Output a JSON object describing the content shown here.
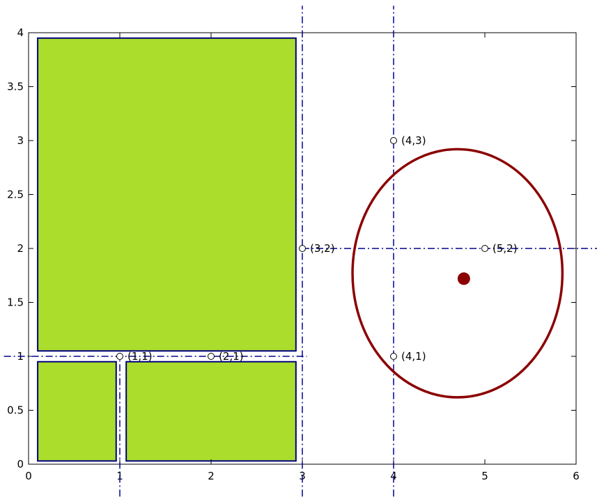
{
  "chart_data": {
    "type": "scatter",
    "xlim": [
      0,
      6
    ],
    "ylim": [
      0,
      4
    ],
    "xticks": [
      "0",
      "1",
      "2",
      "3",
      "4",
      "5",
      "6"
    ],
    "yticks": [
      "0",
      "0.5",
      "1",
      "1.5",
      "2",
      "2.5",
      "3",
      "3.5",
      "4"
    ],
    "grid": false,
    "rectangles": [
      {
        "x0": 0.1,
        "y0": 1.05,
        "x1": 2.93,
        "y1": 3.95,
        "color": "#aadd2c"
      },
      {
        "x0": 0.1,
        "y0": 0.03,
        "x1": 0.96,
        "y1": 0.95,
        "color": "#aadd2c"
      },
      {
        "x0": 1.07,
        "y0": 0.03,
        "x1": 2.93,
        "y1": 0.95,
        "color": "#aadd2c"
      }
    ],
    "rect_edge_color": "#000080",
    "points": [
      {
        "x": 1,
        "y": 1,
        "label": "(1,1)"
      },
      {
        "x": 2,
        "y": 1,
        "label": "(2,1)"
      },
      {
        "x": 3,
        "y": 2,
        "label": "(3,2)"
      },
      {
        "x": 4,
        "y": 3,
        "label": "(4,3)"
      },
      {
        "x": 4,
        "y": 1,
        "label": "(4,1)"
      },
      {
        "x": 5,
        "y": 2,
        "label": "(5,2)"
      }
    ],
    "vertical_lines": [
      {
        "x": 1,
        "y_from": -0.3,
        "y_to": 1
      },
      {
        "x": 3,
        "y_from": -0.3,
        "y_to": 4.25
      },
      {
        "x": 4,
        "y_from": -0.3,
        "y_to": 4.25
      }
    ],
    "horizontal_lines": [
      {
        "y": 1,
        "x_from": -0.27,
        "x_to": 3.05
      },
      {
        "y": 2,
        "x_from": 3,
        "x_to": 6.25
      }
    ],
    "guide_line_color": "#000090",
    "circle": {
      "cx": 4.7,
      "cy": 1.77,
      "r": 1.15,
      "color": "#8b0000"
    },
    "center_marker": {
      "x": 4.77,
      "y": 1.72,
      "color": "#8b0000"
    }
  }
}
